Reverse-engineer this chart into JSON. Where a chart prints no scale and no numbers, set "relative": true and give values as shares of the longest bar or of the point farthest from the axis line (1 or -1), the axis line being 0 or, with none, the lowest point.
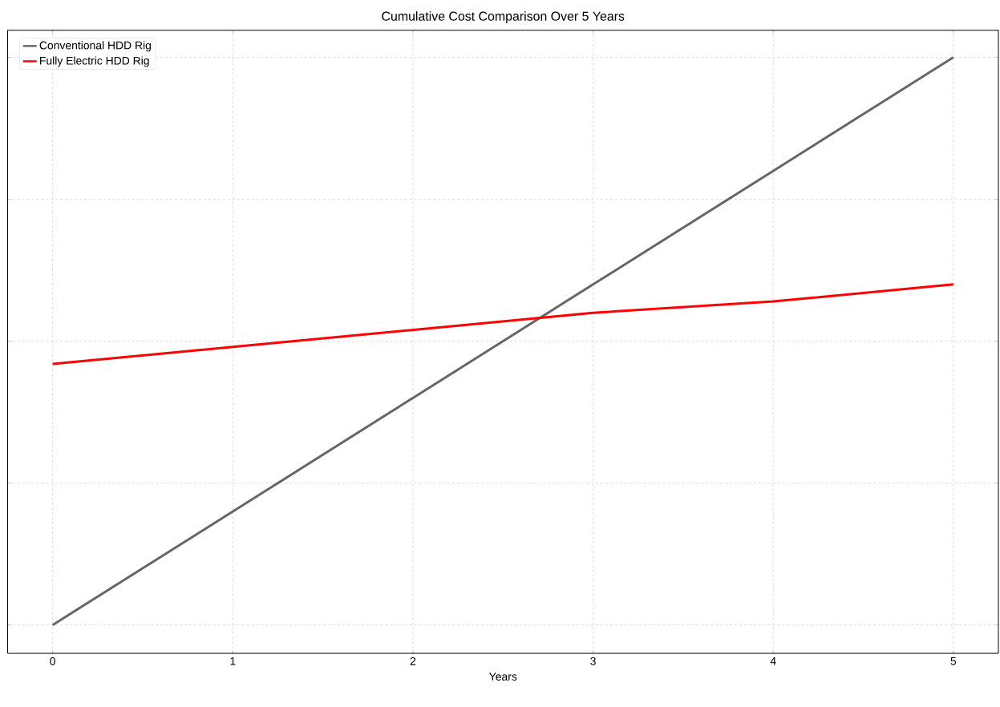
{
  "chart_data": {
    "type": "line",
    "title": "Cumulative Cost Comparison Over 5 Years",
    "xlabel": "Years",
    "x": [
      0,
      1,
      2,
      3,
      4,
      5
    ],
    "relative": true,
    "series": [
      {
        "name": "Conventional HDD Rig",
        "color": "#666666",
        "values": [
          0,
          0.2,
          0.4,
          0.6,
          0.8,
          1
        ]
      },
      {
        "name": "Fully Electric HDD Rig",
        "color": "#ff0000",
        "values": [
          0.46,
          0.49,
          0.52,
          0.55,
          0.57,
          0.6
        ]
      }
    ],
    "xlim": [
      -0.25,
      5.25
    ],
    "xticks": [
      0,
      1,
      2,
      3,
      4,
      5
    ],
    "grid": true,
    "legend": "top left",
    "tick_labels": "x"
  }
}
